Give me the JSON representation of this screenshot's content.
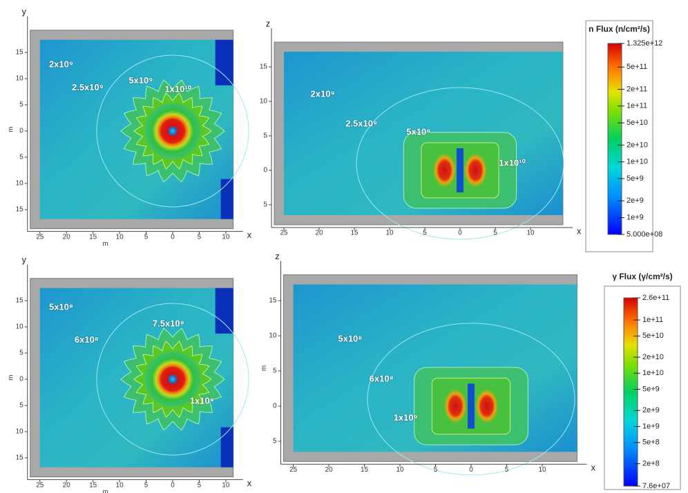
{
  "chart_data": [
    {
      "type": "contour",
      "axis_names": [
        "x",
        "y"
      ],
      "xlabel": "m",
      "ylabel": "m",
      "xlim": [
        -25,
        11.4
      ],
      "ylim": [
        -16.8,
        17.4
      ],
      "xticks": [
        {
          "value": -25,
          "label": "25"
        },
        {
          "value": -20,
          "label": "20"
        },
        {
          "value": -15,
          "label": "15"
        },
        {
          "value": -10,
          "label": "10"
        },
        {
          "value": -5,
          "label": "5"
        },
        0,
        5,
        10
      ],
      "yticks": [
        15,
        10,
        5,
        0,
        {
          "value": -5,
          "label": "5"
        },
        {
          "value": -10,
          "label": "10"
        },
        {
          "value": -15,
          "label": "15"
        }
      ],
      "annotations": [
        {
          "text": "2x10⁹",
          "x": -21,
          "y": 12.6
        },
        {
          "text": "2.5x10⁹",
          "x": -16,
          "y": 8.2
        },
        {
          "text": "5x10⁹",
          "x": -6,
          "y": 9.5
        },
        {
          "text": "1x10¹⁰",
          "x": 1,
          "y": 7.9
        }
      ]
    },
    {
      "type": "contour",
      "axis_names": [
        "x",
        "z"
      ],
      "xlim": [
        -25,
        14.6
      ],
      "ylim": [
        -6.5,
        17.2
      ],
      "xticks": [
        {
          "value": -25,
          "label": "25"
        },
        {
          "value": -20,
          "label": "20"
        },
        {
          "value": -15,
          "label": "15"
        },
        {
          "value": -10,
          "label": "10"
        },
        {
          "value": -5,
          "label": "5"
        },
        0,
        5,
        10
      ],
      "yticks": [
        15,
        10,
        5,
        0,
        {
          "value": -5,
          "label": "5"
        }
      ],
      "annotations": [
        {
          "text": "2x10⁹",
          "x": -19.5,
          "y": 11
        },
        {
          "text": "2.5x10⁹",
          "x": -14,
          "y": 6.7
        },
        {
          "text": "5x10⁹",
          "x": -5.9,
          "y": 5.5
        },
        {
          "text": "1x10¹⁰",
          "x": 7.4,
          "y": 1
        }
      ],
      "colorbar": {
        "title": "n Flux (n/cm²/s)",
        "log": true,
        "lim": [
          500000000,
          1325000000000
        ],
        "ticks": [
          {
            "value": 1325000000000,
            "label": "1.325e+12"
          },
          {
            "value": 500000000000,
            "label": "5e+11"
          },
          {
            "value": 200000000000,
            "label": "2e+11"
          },
          {
            "value": 100000000000,
            "label": "1e+11"
          },
          {
            "value": 50000000000,
            "label": "5e+10"
          },
          {
            "value": 20000000000,
            "label": "2e+10"
          },
          {
            "value": 10000000000,
            "label": "1e+10"
          },
          {
            "value": 5000000000,
            "label": "5e+9"
          },
          {
            "value": 2000000000,
            "label": "2e+9"
          },
          {
            "value": 1000000000,
            "label": "1e+9"
          },
          {
            "value": 500000000,
            "label": "5.000e+08"
          }
        ]
      }
    },
    {
      "type": "contour",
      "axis_names": [
        "x",
        "y"
      ],
      "xlabel": "m",
      "ylabel": "m",
      "xlim": [
        -25,
        11.4
      ],
      "ylim": [
        -16.8,
        17.4
      ],
      "xticks": [
        {
          "value": -25,
          "label": "25"
        },
        {
          "value": -20,
          "label": "20"
        },
        {
          "value": -15,
          "label": "15"
        },
        {
          "value": -10,
          "label": "10"
        },
        {
          "value": -5,
          "label": "5"
        },
        0,
        5,
        10
      ],
      "yticks": [
        15,
        10,
        5,
        0,
        {
          "value": -5,
          "label": "5"
        },
        {
          "value": -10,
          "label": "10"
        },
        {
          "value": -15,
          "label": "15"
        }
      ],
      "annotations": [
        {
          "text": "5x10⁸",
          "x": -21,
          "y": 13.7
        },
        {
          "text": "6x10⁸",
          "x": -16.2,
          "y": 7.4
        },
        {
          "text": "7.5x10⁸",
          "x": -0.8,
          "y": 10.5
        },
        {
          "text": "1x10⁹",
          "x": 5.5,
          "y": -4.2
        }
      ]
    },
    {
      "type": "contour",
      "axis_names": [
        "x",
        "z"
      ],
      "ylabel": "m",
      "xlim": [
        -25,
        14.9
      ],
      "ylim": [
        -6.5,
        17.3
      ],
      "xticks": [
        {
          "value": -25,
          "label": "25"
        },
        {
          "value": -20,
          "label": "20"
        },
        {
          "value": -15,
          "label": "15"
        },
        {
          "value": -10,
          "label": "10"
        },
        {
          "value": -5,
          "label": "5"
        },
        0,
        5,
        10
      ],
      "yticks": [
        15,
        10,
        5,
        0,
        {
          "value": -5,
          "label": "5"
        }
      ],
      "annotations": [
        {
          "text": "5x10⁸",
          "x": -17,
          "y": 9.5
        },
        {
          "text": "6x10⁸",
          "x": -12.6,
          "y": 3.8
        },
        {
          "text": "1x10⁹",
          "x": -9.2,
          "y": -1.7
        }
      ],
      "colorbar": {
        "title": "γ Flux (γ/cm²/s)",
        "log": true,
        "lim": [
          76000000,
          260000000000
        ],
        "ticks": [
          {
            "value": 260000000000,
            "label": "2.6e+11"
          },
          {
            "value": 100000000000,
            "label": "1e+11"
          },
          {
            "value": 50000000000,
            "label": "5e+10"
          },
          {
            "value": 20000000000,
            "label": "2e+10"
          },
          {
            "value": 10000000000,
            "label": "1e+10"
          },
          {
            "value": 5000000000,
            "label": "5e+9"
          },
          {
            "value": 2000000000,
            "label": "2e+9"
          },
          {
            "value": 1000000000,
            "label": "1e+9"
          },
          {
            "value": 500000000,
            "label": "5e+8"
          },
          {
            "value": 200000000,
            "label": "2e+8"
          },
          {
            "value": 76000000,
            "label": "7.6e+07"
          }
        ]
      }
    }
  ]
}
